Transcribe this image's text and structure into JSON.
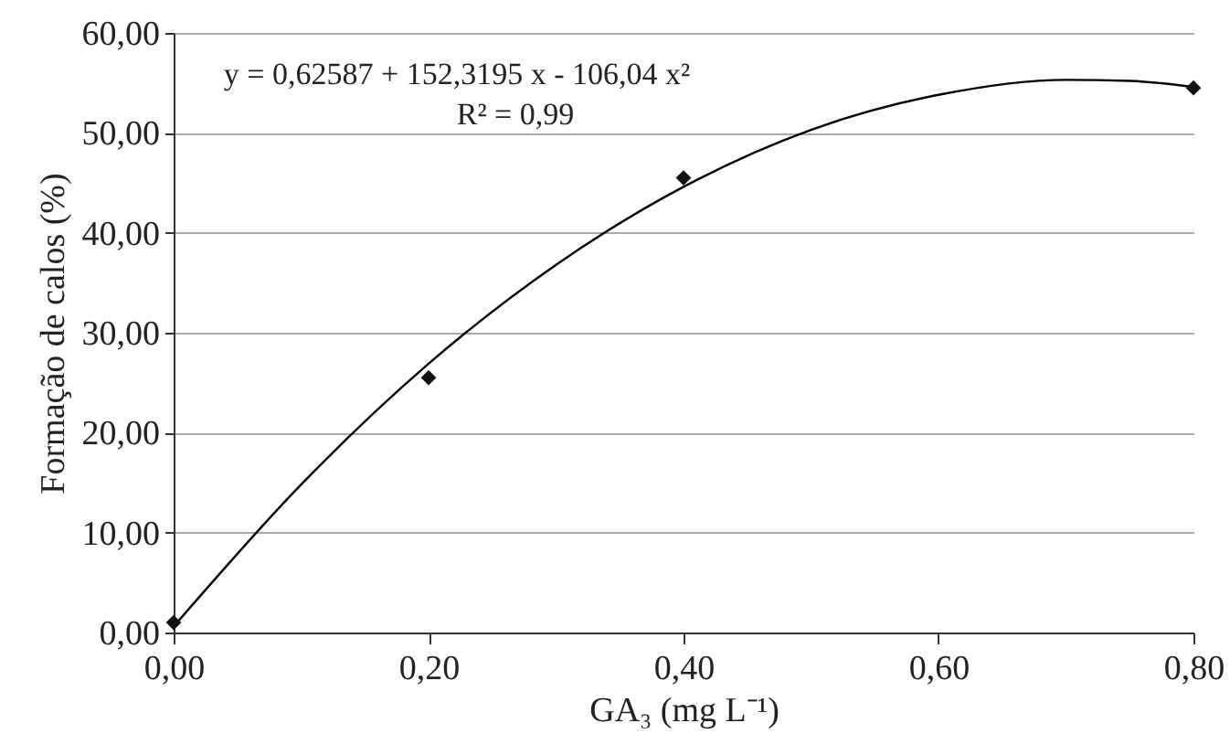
{
  "chart_data": {
    "type": "scatter",
    "xlabel": "GA₃ (mg L⁻¹)",
    "ylabel": "Formação de calos (%)",
    "annotations": [
      "y = 0,62587 + 152,3195 x - 106,04 x²",
      "R² = 0,99"
    ],
    "xlim": [
      0,
      0.8
    ],
    "xticks": [
      {
        "value": 0,
        "label": "0,00"
      },
      {
        "value": 0.2,
        "label": "0,20"
      },
      {
        "value": 0.4,
        "label": "0,40"
      },
      {
        "value": 0.6,
        "label": "0,60"
      },
      {
        "value": 0.8,
        "label": "0,80"
      }
    ],
    "ylim": [
      0,
      60
    ],
    "yticks": [
      {
        "value": 0,
        "label": "0,00"
      },
      {
        "value": 10,
        "label": "10,00"
      },
      {
        "value": 20,
        "label": "20,00"
      },
      {
        "value": 30,
        "label": "30,00"
      },
      {
        "value": 40,
        "label": "40,00"
      },
      {
        "value": 50,
        "label": "50,00"
      },
      {
        "value": 60,
        "label": "60,00"
      }
    ],
    "grid": "y",
    "series": [
      {
        "marker": "diamond",
        "color": "#111111",
        "x": [
          0,
          0.2,
          0.4,
          0.8
        ],
        "values": [
          1.0,
          25.5,
          45.5,
          54.5
        ]
      },
      {
        "type": "line",
        "color": "#000000",
        "line_style": "solid",
        "x": [
          0,
          0.1,
          0.2,
          0.3,
          0.4,
          0.5,
          0.6,
          0.7,
          0.75,
          0.8
        ],
        "values": [
          0.6,
          14.8,
          26.9,
          36.8,
          44.6,
          50.3,
          53.8,
          55.3,
          55.2,
          54.6
        ]
      }
    ]
  }
}
